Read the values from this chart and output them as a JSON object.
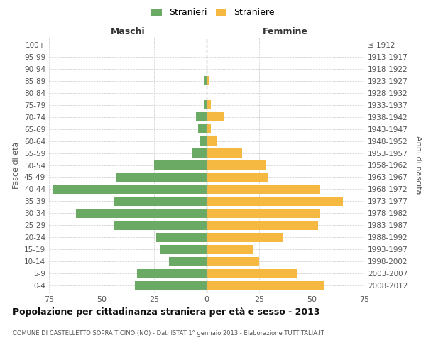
{
  "age_groups": [
    "0-4",
    "5-9",
    "10-14",
    "15-19",
    "20-24",
    "25-29",
    "30-34",
    "35-39",
    "40-44",
    "45-49",
    "50-54",
    "55-59",
    "60-64",
    "65-69",
    "70-74",
    "75-79",
    "80-84",
    "85-89",
    "90-94",
    "95-99",
    "100+"
  ],
  "birth_years": [
    "2008-2012",
    "2003-2007",
    "1998-2002",
    "1993-1997",
    "1988-1992",
    "1983-1987",
    "1978-1982",
    "1973-1977",
    "1968-1972",
    "1963-1967",
    "1958-1962",
    "1953-1957",
    "1948-1952",
    "1943-1947",
    "1938-1942",
    "1933-1937",
    "1928-1932",
    "1923-1927",
    "1918-1922",
    "1913-1917",
    "≤ 1912"
  ],
  "males": [
    34,
    33,
    18,
    22,
    24,
    44,
    62,
    44,
    73,
    43,
    25,
    7,
    3,
    4,
    5,
    1,
    0,
    1,
    0,
    0,
    0
  ],
  "females": [
    56,
    43,
    25,
    22,
    36,
    53,
    54,
    65,
    54,
    29,
    28,
    17,
    5,
    2,
    8,
    2,
    0,
    1,
    0,
    0,
    0
  ],
  "male_color": "#6aaa64",
  "female_color": "#f5b942",
  "title": "Popolazione per cittadinanza straniera per età e sesso - 2013",
  "subtitle": "COMUNE DI CASTELLETTO SOPRA TICINO (NO) - Dati ISTAT 1° gennaio 2013 - Elaborazione TUTTITALIA.IT",
  "ylabel_left": "Fasce di età",
  "ylabel_right": "Anni di nascita",
  "xlabel_left": "Maschi",
  "xlabel_right": "Femmine",
  "legend_stranieri": "Stranieri",
  "legend_straniere": "Straniere",
  "xlim": 75,
  "background_color": "#ffffff",
  "grid_color": "#cccccc"
}
